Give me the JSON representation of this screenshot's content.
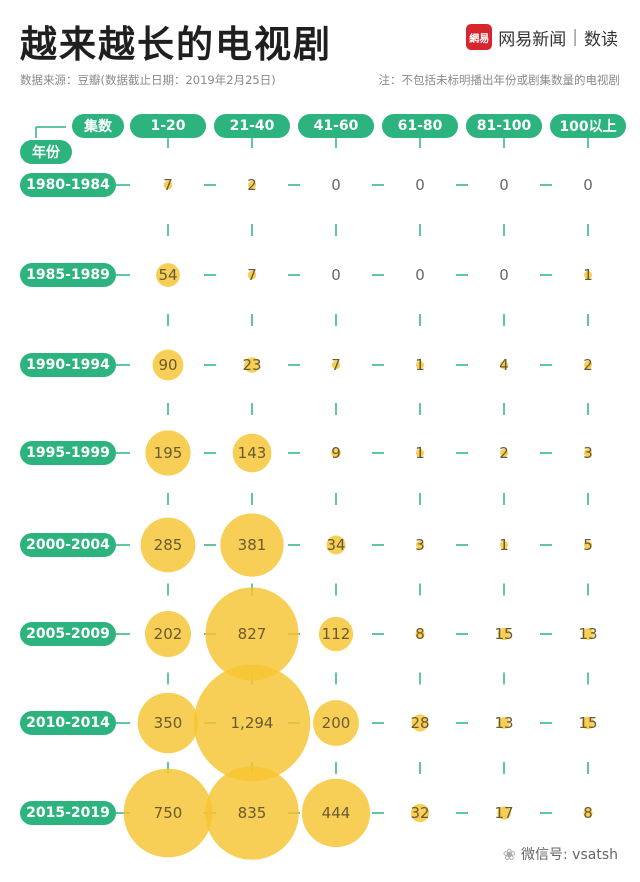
{
  "header": {
    "title": "越来越长的电视剧",
    "brand_logo": "網易",
    "brand_name": "网易新闻",
    "brand_sep": "|",
    "brand_column": "数读",
    "source": "数据来源：豆瓣(数据截止日期：2019年2月25日)",
    "note": "注：不包括未标明播出年份或剧集数量的电视剧"
  },
  "axis_labels": {
    "columns_label": "集数",
    "rows_label": "年份"
  },
  "colors": {
    "accent_green": "#2db37d",
    "bubble_yellow": "#f6c531",
    "connector": "#2db37d",
    "text_dark": "#1f1f1f"
  },
  "watermark": {
    "icon": "wechat-icon",
    "text": "微信号: vsatsh"
  },
  "chart_data": {
    "type": "bubble-matrix",
    "x_categories": [
      "1-20",
      "21-40",
      "41-60",
      "61-80",
      "81-100",
      "100以上"
    ],
    "y_categories": [
      "1980-1984",
      "1985-1989",
      "1990-1994",
      "1995-1999",
      "2000-2004",
      "2005-2009",
      "2010-2014",
      "2015-2019"
    ],
    "values": [
      [
        7,
        2,
        0,
        0,
        0,
        0
      ],
      [
        54,
        7,
        0,
        0,
        0,
        1
      ],
      [
        90,
        23,
        7,
        1,
        4,
        2
      ],
      [
        195,
        143,
        9,
        1,
        2,
        3
      ],
      [
        285,
        381,
        34,
        3,
        1,
        5
      ],
      [
        202,
        827,
        112,
        8,
        15,
        13
      ],
      [
        350,
        1294,
        200,
        28,
        13,
        15
      ],
      [
        750,
        835,
        444,
        32,
        17,
        8
      ]
    ],
    "value_labels": [
      [
        "7",
        "2",
        "0",
        "0",
        "0",
        "0"
      ],
      [
        "54",
        "7",
        "0",
        "0",
        "0",
        "1"
      ],
      [
        "90",
        "23",
        "7",
        "1",
        "4",
        "2"
      ],
      [
        "195",
        "143",
        "9",
        "1",
        "2",
        "3"
      ],
      [
        "285",
        "381",
        "34",
        "3",
        "1",
        "5"
      ],
      [
        "202",
        "827",
        "112",
        "8",
        "15",
        "13"
      ],
      [
        "350",
        "1,294",
        "200",
        "28",
        "13",
        "15"
      ],
      [
        "750",
        "835",
        "444",
        "32",
        "17",
        "8"
      ]
    ]
  }
}
